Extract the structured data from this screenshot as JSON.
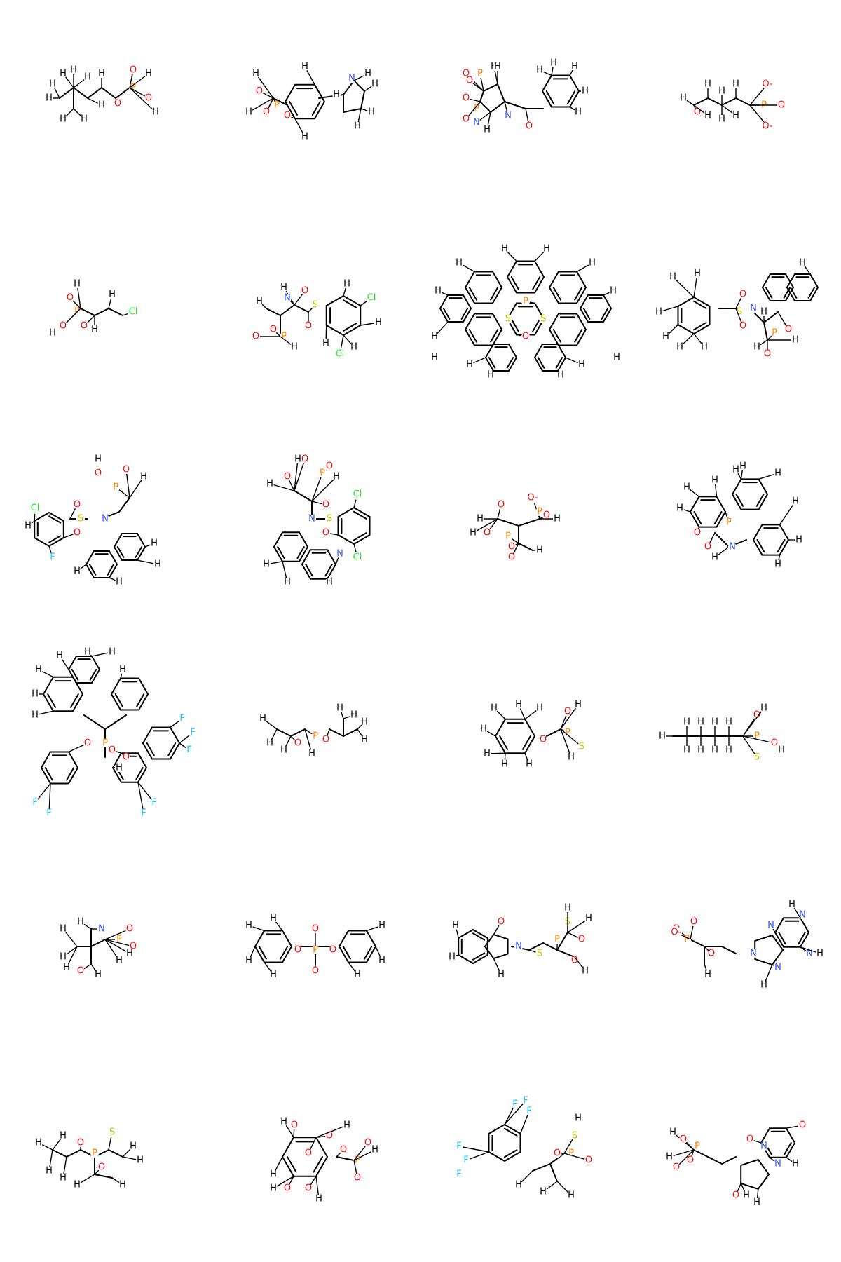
{
  "atom_colors": {
    "H": "#000000",
    "C": "#000000",
    "O": "#ff0d0d",
    "N": "#3050f8",
    "P": "#ff8000",
    "S": "#c8c800",
    "Cl": "#1ff01f",
    "F": "#20c4ff"
  },
  "molecules": [
    {
      "id": "m01",
      "labels": [
        "H",
        "H",
        "H",
        "H",
        "H",
        "H",
        "H",
        "H",
        "H",
        "O",
        "P",
        "O",
        "O",
        "H",
        "H"
      ]
    },
    {
      "id": "m02",
      "labels": [
        "H",
        "O",
        "O",
        "P",
        "O",
        "H",
        "H",
        "N",
        "H",
        "H",
        "H",
        "H",
        "H",
        "H"
      ]
    },
    {
      "id": "m03",
      "labels": [
        "O",
        "P",
        "O",
        "H",
        "O",
        "P",
        "O",
        "H",
        "N",
        "H",
        "N",
        "O",
        "H",
        "H",
        "H",
        "H",
        "H"
      ]
    },
    {
      "id": "m04",
      "labels": [
        "H",
        "O",
        "H",
        "H",
        "H",
        "H",
        "H",
        "H",
        "P",
        "O-",
        "O",
        "O-"
      ]
    },
    {
      "id": "m05",
      "labels": [
        "H",
        "O",
        "P",
        "O",
        "H",
        "O",
        "H",
        "Cl",
        "H"
      ]
    },
    {
      "id": "m06",
      "labels": [
        "H",
        "N",
        "O",
        "S",
        "O",
        "H",
        "O",
        "P",
        "O",
        "H",
        "H",
        "Cl",
        "H",
        "H",
        "Cl",
        "H"
      ]
    },
    {
      "id": "m07",
      "labels": [
        "H",
        "H",
        "H",
        "H",
        "H",
        "H",
        "H",
        "S",
        "S",
        "P",
        "O",
        "H",
        "H",
        "H",
        "H",
        "H",
        "H"
      ]
    },
    {
      "id": "m08",
      "labels": [
        "H",
        "H",
        "H",
        "H",
        "H",
        "H",
        "S",
        "O",
        "O",
        "N",
        "H",
        "P",
        "O",
        "H",
        "O",
        "H",
        "H"
      ]
    },
    {
      "id": "m09",
      "labels": [
        "H",
        "O",
        "P",
        "O",
        "H",
        "Cl",
        "S",
        "N",
        "O",
        "O",
        "F",
        "H",
        "H",
        "H",
        "H",
        "H"
      ]
    },
    {
      "id": "m10",
      "labels": [
        "O",
        "H",
        "P",
        "O",
        "H",
        "O",
        "H",
        "N",
        "S",
        "O",
        "O",
        "Cl",
        "Cl",
        "N",
        "H",
        "H",
        "H"
      ]
    },
    {
      "id": "m11",
      "labels": [
        "H",
        "O",
        "O-",
        "P",
        "O",
        "H",
        "O",
        "P",
        "O",
        "O",
        "H",
        "H"
      ]
    },
    {
      "id": "m12",
      "labels": [
        "H",
        "H",
        "H",
        "H",
        "P",
        "O",
        "O",
        "H",
        "N",
        "H",
        "H",
        "H",
        "H",
        "H"
      ]
    },
    {
      "id": "m13",
      "labels": [
        "H",
        "H",
        "H",
        "H",
        "H",
        "H",
        "H",
        "O",
        "P",
        "O",
        "O",
        "H",
        "F",
        "F",
        "F",
        "F",
        "F",
        "F",
        "F"
      ]
    },
    {
      "id": "m14",
      "labels": [
        "H",
        "H",
        "H",
        "O",
        "P",
        "O",
        "H",
        "H",
        "H",
        "H",
        "H"
      ]
    },
    {
      "id": "m15",
      "labels": [
        "H",
        "H",
        "H",
        "H",
        "H",
        "O",
        "P",
        "S",
        "O",
        "H",
        "H",
        "H",
        "H"
      ]
    },
    {
      "id": "m16",
      "labels": [
        "H",
        "H",
        "H",
        "H",
        "H",
        "H",
        "H",
        "H",
        "H",
        "P",
        "O",
        "H",
        "S",
        "O",
        "H"
      ]
    },
    {
      "id": "m17",
      "labels": [
        "H",
        "H",
        "N",
        "H",
        "P",
        "O",
        "O",
        "H",
        "O",
        "H",
        "H",
        "H"
      ]
    },
    {
      "id": "m18",
      "labels": [
        "H",
        "H",
        "H",
        "O",
        "P",
        "O",
        "O",
        "O",
        "H",
        "H",
        "H",
        "H"
      ]
    },
    {
      "id": "m19",
      "labels": [
        "H",
        "H",
        "O",
        "N",
        "S",
        "P",
        "S",
        "O",
        "O",
        "H",
        "H",
        "H",
        "H"
      ]
    },
    {
      "id": "m20",
      "labels": [
        "O",
        "P",
        "O",
        "O-",
        "O",
        "N",
        "N",
        "N",
        "N",
        "N",
        "H",
        "H",
        "H",
        "H"
      ]
    },
    {
      "id": "m21",
      "labels": [
        "H",
        "H",
        "S",
        "P",
        "O",
        "O",
        "H",
        "H",
        "H",
        "H",
        "H",
        "H"
      ]
    },
    {
      "id": "m22",
      "labels": [
        "H",
        "O",
        "O",
        "H",
        "O",
        "O",
        "P",
        "O",
        "O",
        "H",
        "H",
        "O",
        "H",
        "O",
        "H"
      ]
    },
    {
      "id": "m23",
      "labels": [
        "F",
        "F",
        "F",
        "F",
        "F",
        "F",
        "O",
        "P",
        "S",
        "O",
        "H",
        "H",
        "H",
        "H"
      ]
    },
    {
      "id": "m24",
      "labels": [
        "H",
        "O",
        "O",
        "P",
        "O",
        "H",
        "N",
        "O",
        "N",
        "O",
        "H",
        "O",
        "H",
        "H"
      ]
    }
  ]
}
